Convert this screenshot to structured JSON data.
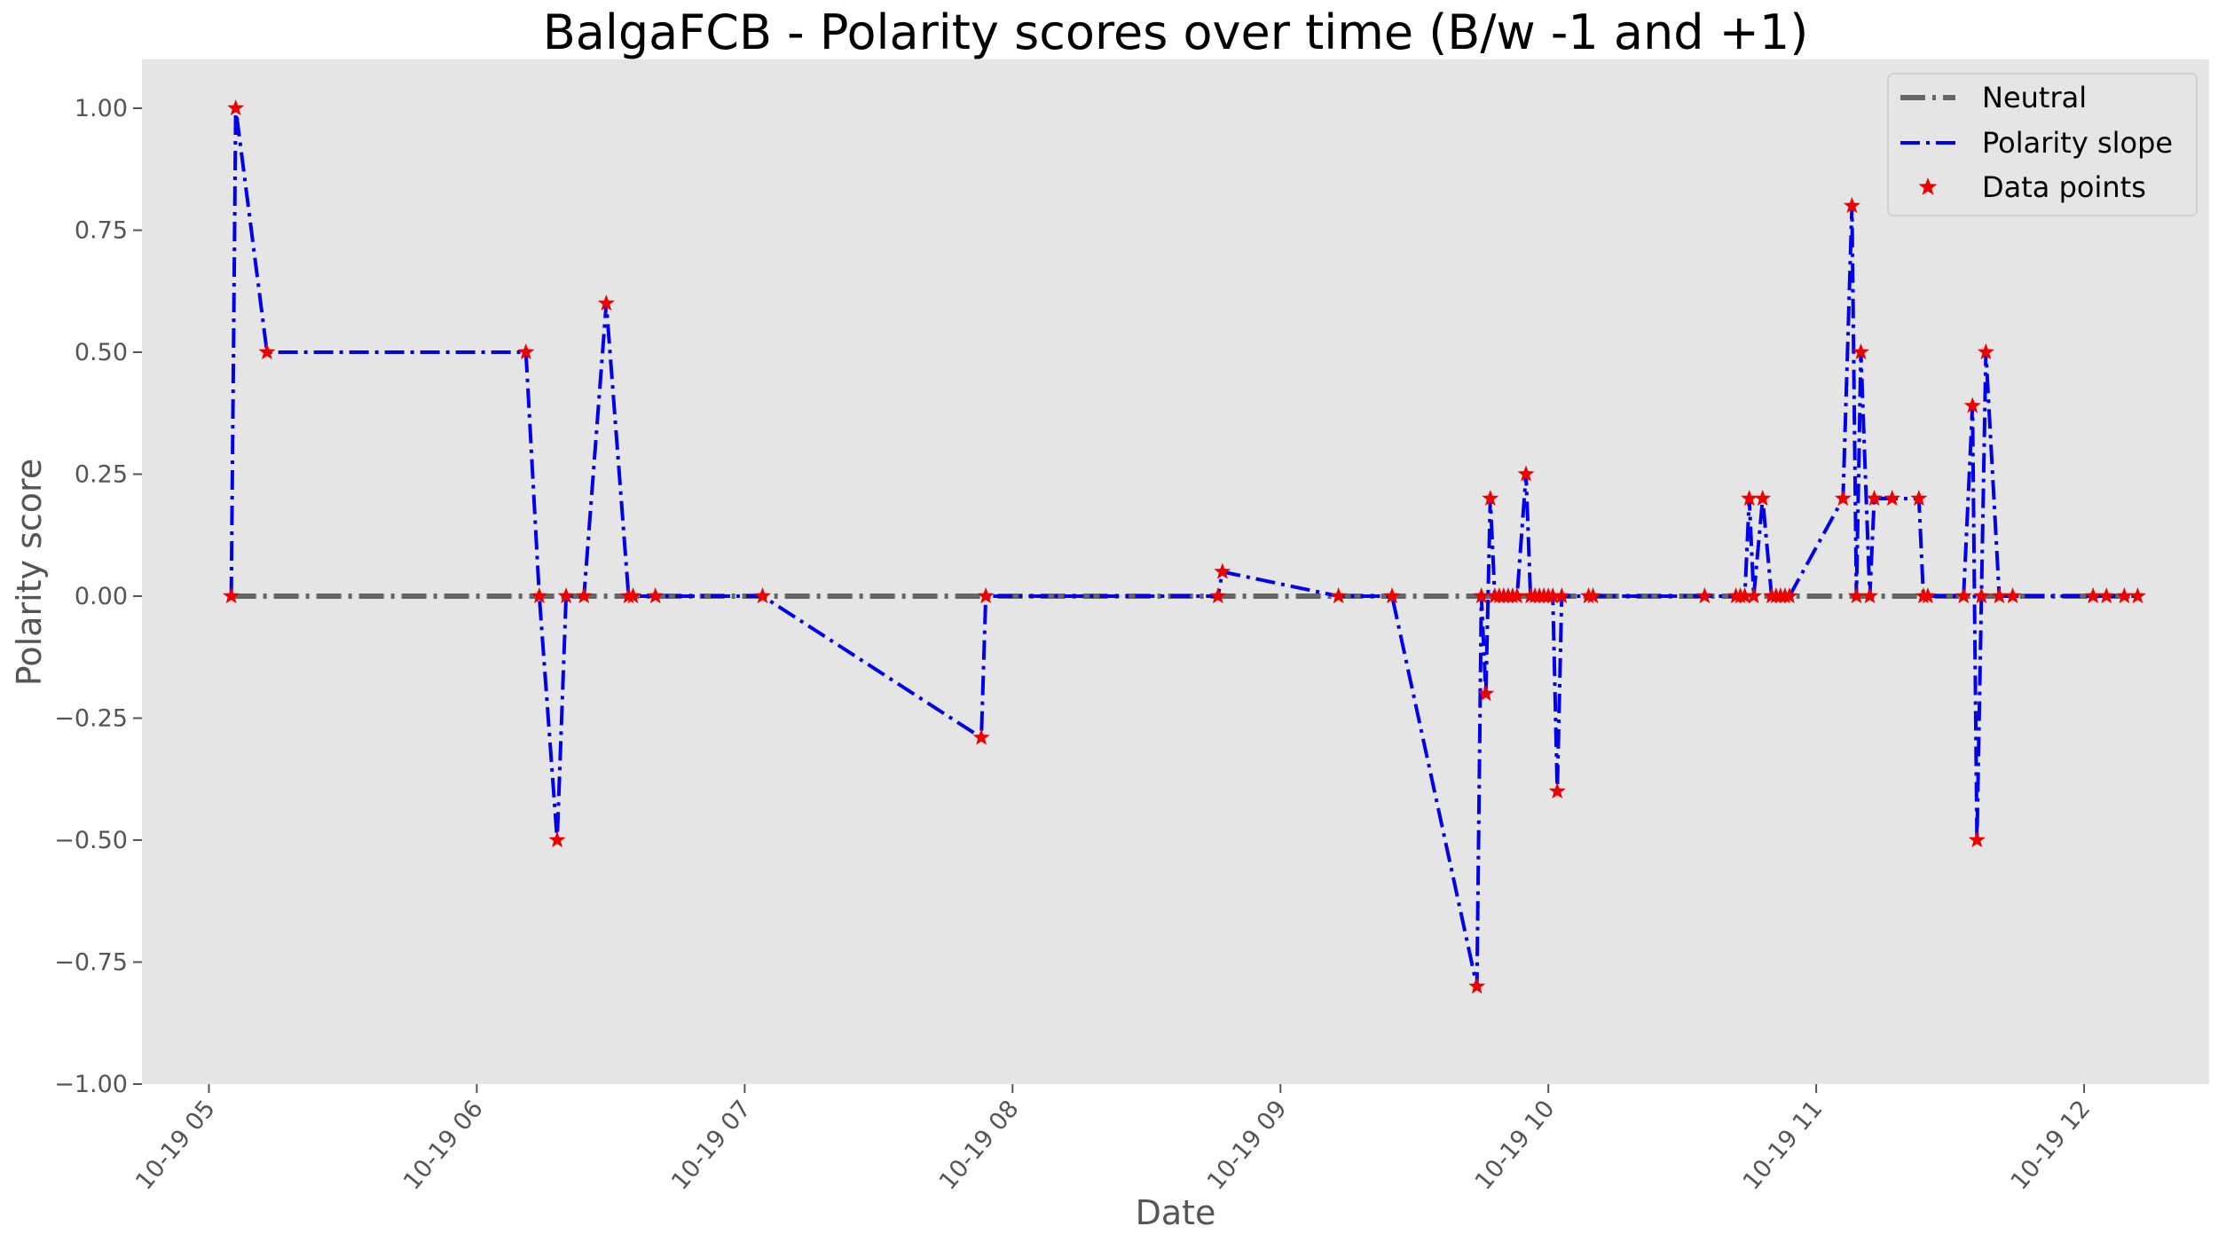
{
  "chart_data": {
    "type": "line",
    "title": "BalgaFCB - Polarity scores over time (B/w -1 and +1)",
    "xlabel": "Date",
    "ylabel": "Polarity score",
    "xlim": [
      "10-19 04:45",
      "10-19 12:28"
    ],
    "ylim": [
      -1.0,
      1.1
    ],
    "x_ticks": [
      {
        "t": "10-19 05:00",
        "label": "10-19 05"
      },
      {
        "t": "10-19 06:00",
        "label": "10-19 06"
      },
      {
        "t": "10-19 07:00",
        "label": "10-19 07"
      },
      {
        "t": "10-19 08:00",
        "label": "10-19 08"
      },
      {
        "t": "10-19 09:00",
        "label": "10-19 09"
      },
      {
        "t": "10-19 10:00",
        "label": "10-19 10"
      },
      {
        "t": "10-19 11:00",
        "label": "10-19 11"
      },
      {
        "t": "10-19 12:00",
        "label": "10-19 12"
      }
    ],
    "y_ticks": [
      1.0,
      0.75,
      0.5,
      0.25,
      0.0,
      -0.25,
      -0.5,
      -0.75,
      -1.0
    ],
    "y_tick_labels": [
      "1.00",
      "0.75",
      "0.50",
      "0.25",
      "0.00",
      "−0.25",
      "−0.50",
      "−0.75",
      "−1.00"
    ],
    "grid": false,
    "legend_position": "top-right",
    "colors": {
      "plot_bg": "#e5e5e5",
      "neutral": "#666666",
      "polarity": "#0000ee",
      "points": "#ee0000"
    },
    "neutral": {
      "name": "Neutral",
      "y": 0.0
    },
    "series": [
      {
        "name": "Polarity slope",
        "points": [
          [
            "10-19 05:05",
            0.0
          ],
          [
            "10-19 05:06",
            1.0
          ],
          [
            "10-19 05:13",
            0.5
          ],
          [
            "10-19 06:11",
            0.5
          ],
          [
            "10-19 06:14",
            0.0
          ],
          [
            "10-19 06:18",
            -0.5
          ],
          [
            "10-19 06:20",
            0.0
          ],
          [
            "10-19 06:24",
            0.0
          ],
          [
            "10-19 06:29",
            0.6
          ],
          [
            "10-19 06:34",
            0.0
          ],
          [
            "10-19 06:35",
            0.0
          ],
          [
            "10-19 06:40",
            0.0
          ],
          [
            "10-19 07:04",
            0.0
          ],
          [
            "10-19 07:53",
            -0.29
          ],
          [
            "10-19 07:54",
            0.0
          ],
          [
            "10-19 08:46",
            0.0
          ],
          [
            "10-19 08:47",
            0.05
          ],
          [
            "10-19 09:13",
            0.0
          ],
          [
            "10-19 09:25",
            0.0
          ],
          [
            "10-19 09:44",
            -0.8
          ],
          [
            "10-19 09:45",
            0.0
          ],
          [
            "10-19 09:46",
            -0.2
          ],
          [
            "10-19 09:47",
            0.2
          ],
          [
            "10-19 09:48",
            0.0
          ],
          [
            "10-19 09:49",
            0.0
          ],
          [
            "10-19 09:50",
            0.0
          ],
          [
            "10-19 09:51",
            0.0
          ],
          [
            "10-19 09:52",
            0.0
          ],
          [
            "10-19 09:53",
            0.0
          ],
          [
            "10-19 09:55",
            0.25
          ],
          [
            "10-19 09:56",
            0.0
          ],
          [
            "10-19 09:57",
            0.0
          ],
          [
            "10-19 09:58",
            0.0
          ],
          [
            "10-19 09:59",
            0.0
          ],
          [
            "10-19 10:00",
            0.0
          ],
          [
            "10-19 10:01",
            0.0
          ],
          [
            "10-19 10:02",
            -0.4
          ],
          [
            "10-19 10:03",
            0.0
          ],
          [
            "10-19 10:09",
            0.0
          ],
          [
            "10-19 10:10",
            0.0
          ],
          [
            "10-19 10:35",
            0.0
          ],
          [
            "10-19 10:42",
            0.0
          ],
          [
            "10-19 10:43",
            0.0
          ],
          [
            "10-19 10:44",
            0.0
          ],
          [
            "10-19 10:45",
            0.2
          ],
          [
            "10-19 10:46",
            0.0
          ],
          [
            "10-19 10:48",
            0.2
          ],
          [
            "10-19 10:50",
            0.0
          ],
          [
            "10-19 10:51",
            0.0
          ],
          [
            "10-19 10:52",
            0.0
          ],
          [
            "10-19 10:53",
            0.0
          ],
          [
            "10-19 10:54",
            0.0
          ],
          [
            "10-19 11:06",
            0.2
          ],
          [
            "10-19 11:08",
            0.8
          ],
          [
            "10-19 11:09",
            0.0
          ],
          [
            "10-19 11:10",
            0.5
          ],
          [
            "10-19 11:12",
            0.0
          ],
          [
            "10-19 11:13",
            0.2
          ],
          [
            "10-19 11:17",
            0.2
          ],
          [
            "10-19 11:23",
            0.2
          ],
          [
            "10-19 11:24",
            0.0
          ],
          [
            "10-19 11:25",
            0.0
          ],
          [
            "10-19 11:33",
            0.0
          ],
          [
            "10-19 11:35",
            0.39
          ],
          [
            "10-19 11:36",
            -0.5
          ],
          [
            "10-19 11:37",
            0.0
          ],
          [
            "10-19 11:38",
            0.5
          ],
          [
            "10-19 11:41",
            0.0
          ],
          [
            "10-19 11:44",
            0.0
          ],
          [
            "10-19 12:02",
            0.0
          ],
          [
            "10-19 12:05",
            0.0
          ],
          [
            "10-19 12:09",
            0.0
          ],
          [
            "10-19 12:12",
            0.0
          ]
        ]
      }
    ],
    "legend": [
      "Neutral",
      "Polarity slope",
      "Data points"
    ]
  }
}
